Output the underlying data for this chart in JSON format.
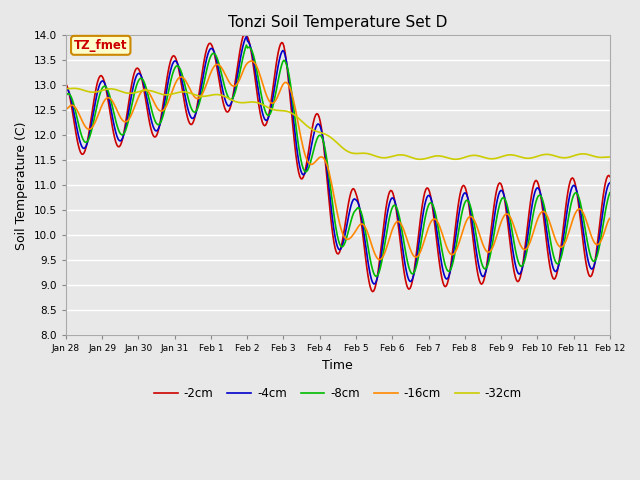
{
  "title": "Tonzi Soil Temperature Set D",
  "xlabel": "Time",
  "ylabel": "Soil Temperature (C)",
  "ylim": [
    8.0,
    14.0
  ],
  "yticks": [
    8.0,
    8.5,
    9.0,
    9.5,
    10.0,
    10.5,
    11.0,
    11.5,
    12.0,
    12.5,
    13.0,
    13.5,
    14.0
  ],
  "legend_labels": [
    "-2cm",
    "-4cm",
    "-8cm",
    "-16cm",
    "-32cm"
  ],
  "legend_colors": [
    "#cc0000",
    "#0000cc",
    "#00bb00",
    "#ff8800",
    "#cccc00"
  ],
  "annotation_text": "TZ_fmet",
  "annotation_color": "#cc0000",
  "annotation_bg": "#ffffcc",
  "annotation_border": "#cc8800",
  "fig_bg_color": "#e8e8e8",
  "plot_bg_color": "#e8e8e8",
  "grid_color": "#ffffff",
  "line_width": 1.2,
  "n_points": 480,
  "x_tick_labels": [
    "Jan 28",
    "Jan 29",
    "Jan 30",
    "Jan 31",
    "Feb 1",
    "Feb 2",
    "Feb 3",
    "Feb 4",
    "Feb 5",
    "Feb 6",
    "Feb 7",
    "Feb 8",
    "Feb 9",
    "Feb 10",
    "Feb 11",
    "Feb 12"
  ],
  "x_tick_positions": [
    0,
    1,
    2,
    3,
    4,
    5,
    6,
    7,
    8,
    9,
    10,
    11,
    12,
    13,
    14,
    15
  ]
}
